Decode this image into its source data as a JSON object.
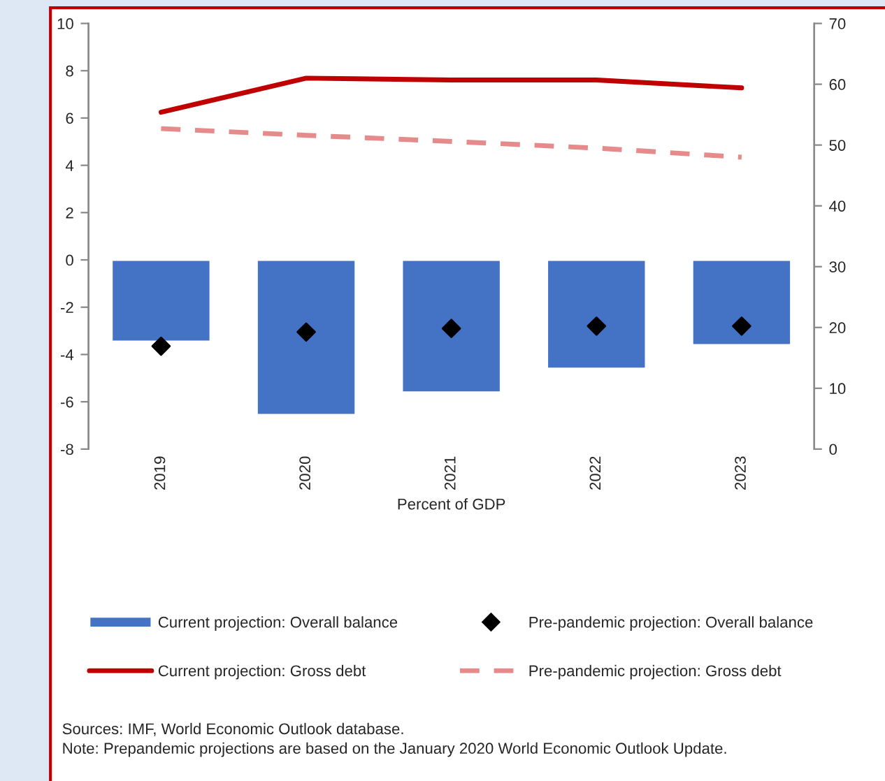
{
  "chart_data": {
    "type": "bar",
    "categories": [
      "2019",
      "2020",
      "2021",
      "2022",
      "2023"
    ],
    "xlabel": "Percent of GDP",
    "series": [
      {
        "name": "Current projection: Overall balance",
        "color": "#4472c4",
        "values": [
          -3.45,
          -6.55,
          -5.6,
          -4.6,
          -3.6
        ]
      },
      {
        "name": "Pre-pandemic projection: Overall balance",
        "type": "scatter",
        "marker": "diamond",
        "color": "#000000",
        "values": [
          -3.65,
          -3.05,
          -2.9,
          -2.8,
          -2.8
        ]
      },
      {
        "name": "Current projection: Gross debt",
        "type": "line",
        "axis": "y2",
        "line_style": "solid",
        "color": "#c00000",
        "values": [
          55.4,
          61.0,
          60.7,
          60.7,
          59.4
        ]
      },
      {
        "name": "Pre-pandemic projection: Gross debt",
        "type": "line",
        "axis": "y2",
        "line_style": "dashed",
        "color": "#e58b8b",
        "values": [
          52.7,
          51.6,
          50.6,
          49.5,
          48.0
        ]
      }
    ],
    "ylim": [
      -8,
      10
    ],
    "yticks": [
      -8,
      -6,
      -4,
      -2,
      0,
      2,
      4,
      6,
      8,
      10
    ],
    "y2lim": [
      0,
      70
    ],
    "y2ticks": [
      0,
      10,
      20,
      30,
      40,
      50,
      60,
      70
    ],
    "grid": false,
    "legend": "bottom",
    "annotations": [
      "Sources: IMF, World Economic Outlook database.",
      "Note: Prepandemic projections are based on the January 2020 World Economic Outlook Update."
    ]
  }
}
